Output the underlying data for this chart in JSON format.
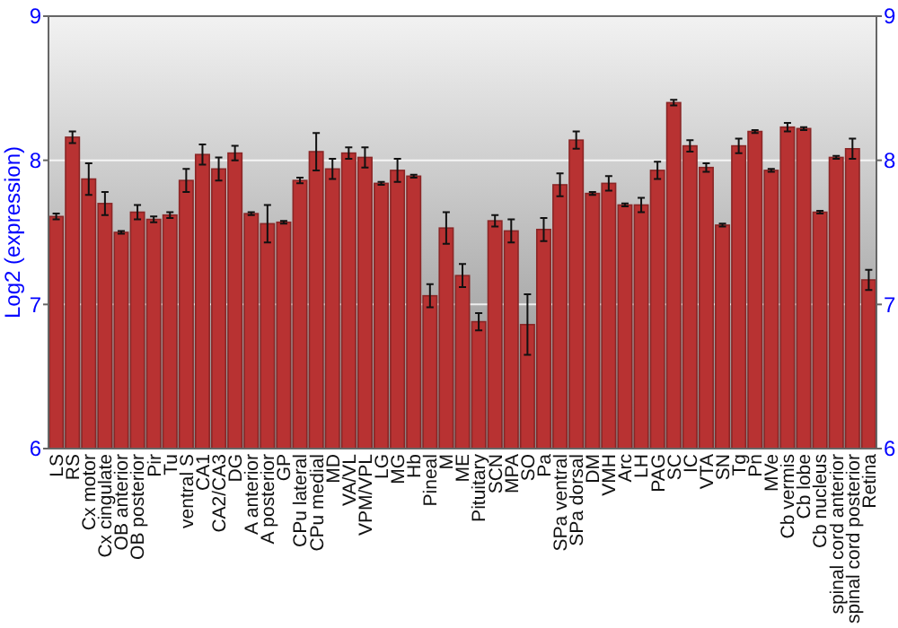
{
  "chart_data": {
    "type": "bar",
    "ylabel": "Log2 (expression)",
    "categories": [
      "LS",
      "RS",
      "Cx motor",
      "Cx cingulate",
      "OB anterior",
      "OB posterior",
      "Pir",
      "Tu",
      "ventral S",
      "CA1",
      "CA2/CA3",
      "DG",
      "A anterior",
      "A posterior",
      "GP",
      "CPu lateral",
      "CPu medial",
      "MD",
      "VA/VL",
      "VPM/VPL",
      "LG",
      "MG",
      "Hb",
      "Pineal",
      "M",
      "ME",
      "Pituitary",
      "SCN",
      "MPA",
      "SO",
      "Pa",
      "SPa ventral",
      "SPa dorsal",
      "DM",
      "VMH",
      "Arc",
      "LH",
      "PAG",
      "SC",
      "IC",
      "VTA",
      "SN",
      "Tg",
      "Pn",
      "MVe",
      "Cb vermis",
      "Cb lobe",
      "Cb nucleus",
      "spinal cord anterior",
      "spinal cord posterior",
      "Retina"
    ],
    "values": [
      7.61,
      8.16,
      7.87,
      7.7,
      7.5,
      7.64,
      7.59,
      7.62,
      7.86,
      8.04,
      7.94,
      8.05,
      7.63,
      7.56,
      7.57,
      7.86,
      8.06,
      7.94,
      8.05,
      8.02,
      7.84,
      7.93,
      7.89,
      7.06,
      7.53,
      7.2,
      6.88,
      7.58,
      7.51,
      6.86,
      7.52,
      7.83,
      8.14,
      7.77,
      7.84,
      7.69,
      7.69,
      7.93,
      8.4,
      8.1,
      7.95,
      7.55,
      8.1,
      8.2,
      7.93,
      8.23,
      8.22,
      7.64,
      8.02,
      8.08,
      7.17
    ],
    "errors": [
      0.02,
      0.04,
      0.11,
      0.08,
      0.01,
      0.05,
      0.02,
      0.02,
      0.08,
      0.07,
      0.08,
      0.05,
      0.01,
      0.13,
      0.01,
      0.02,
      0.13,
      0.07,
      0.04,
      0.07,
      0.01,
      0.08,
      0.01,
      0.08,
      0.11,
      0.08,
      0.06,
      0.04,
      0.08,
      0.21,
      0.08,
      0.08,
      0.06,
      0.01,
      0.05,
      0.01,
      0.05,
      0.06,
      0.02,
      0.04,
      0.03,
      0.01,
      0.05,
      0.01,
      0.01,
      0.03,
      0.01,
      0.01,
      0.01,
      0.07,
      0.07
    ],
    "color": "#b83232",
    "ylim": [
      6,
      9
    ],
    "yticks": [
      6,
      7,
      8,
      9
    ],
    "y2lim": [
      6,
      9
    ],
    "y2ticks": [
      6,
      7,
      8,
      9
    ],
    "grid": "y"
  }
}
